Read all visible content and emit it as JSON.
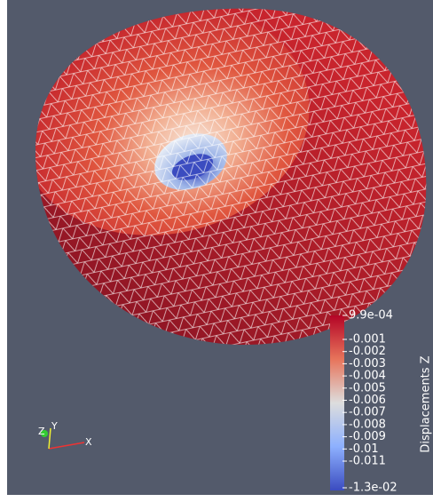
{
  "color_legend": {
    "title": "Displacements Z",
    "labels": [
      "9.9e-04",
      "-0.001",
      "-0.002",
      "-0.003",
      "-0.004",
      "-0.005",
      "-0.006",
      "-0.007",
      "-0.008",
      "-0.009",
      "-0.01",
      "-0.011",
      "-1.3e-02"
    ]
  },
  "axes_triad": {
    "x": "X",
    "y": "Y",
    "z": "Z"
  }
}
